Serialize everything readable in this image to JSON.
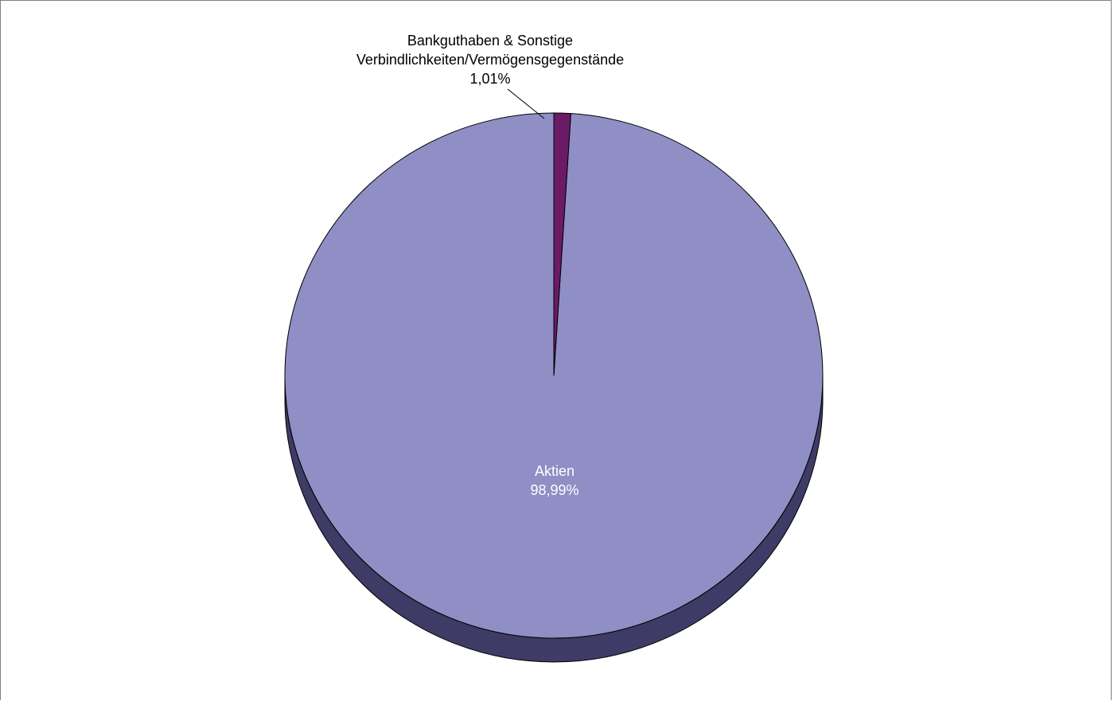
{
  "chart_data": {
    "type": "pie",
    "title": "",
    "categories": [
      "Aktien",
      "Bankguthaben & Sonstige Verbindlichkeiten/Vermögensgegenstände"
    ],
    "values": [
      98.99,
      1.01
    ],
    "slices": [
      {
        "name": "Aktien",
        "label_lines": [
          "Aktien",
          "98,99%"
        ],
        "value": 98.99,
        "color": "#8f8fc5",
        "label_position": "inside"
      },
      {
        "name": "Bankguthaben & Sonstige Verbindlichkeiten/Vermögensgegenstände",
        "label_lines": [
          "Bankguthaben & Sonstige",
          "Verbindlichkeiten/Vermögensgegenstände",
          "1,01%"
        ],
        "value": 1.01,
        "color": "#6b1a66",
        "label_position": "outside-top-with-leader"
      }
    ],
    "side_color": "#3e3b66",
    "three_d": true,
    "legend": "none"
  }
}
